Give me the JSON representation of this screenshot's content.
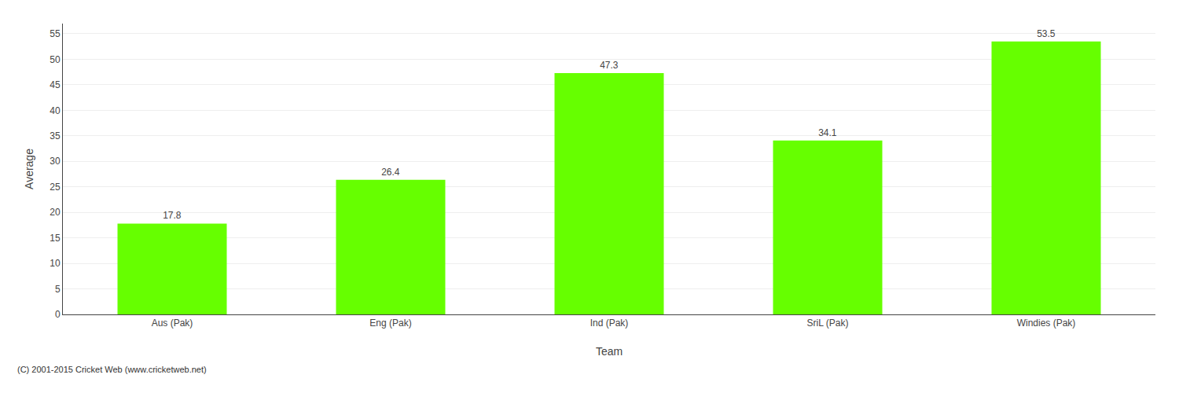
{
  "chart_data": {
    "type": "bar",
    "categories": [
      "Aus (Pak)",
      "Eng (Pak)",
      "Ind (Pak)",
      "SriL (Pak)",
      "Windies (Pak)"
    ],
    "values": [
      17.8,
      26.4,
      47.3,
      34.1,
      53.5
    ],
    "color": "#66ff00",
    "xlabel": "Team",
    "ylabel": "Average",
    "ylim": [
      0,
      57
    ],
    "yticks": [
      0,
      5,
      10,
      15,
      20,
      25,
      30,
      35,
      40,
      45,
      50,
      55
    ],
    "grid": true,
    "data_labels": true,
    "annotations": [
      "(C) 2001-2015 Cricket Web (www.cricketweb.net)"
    ]
  }
}
